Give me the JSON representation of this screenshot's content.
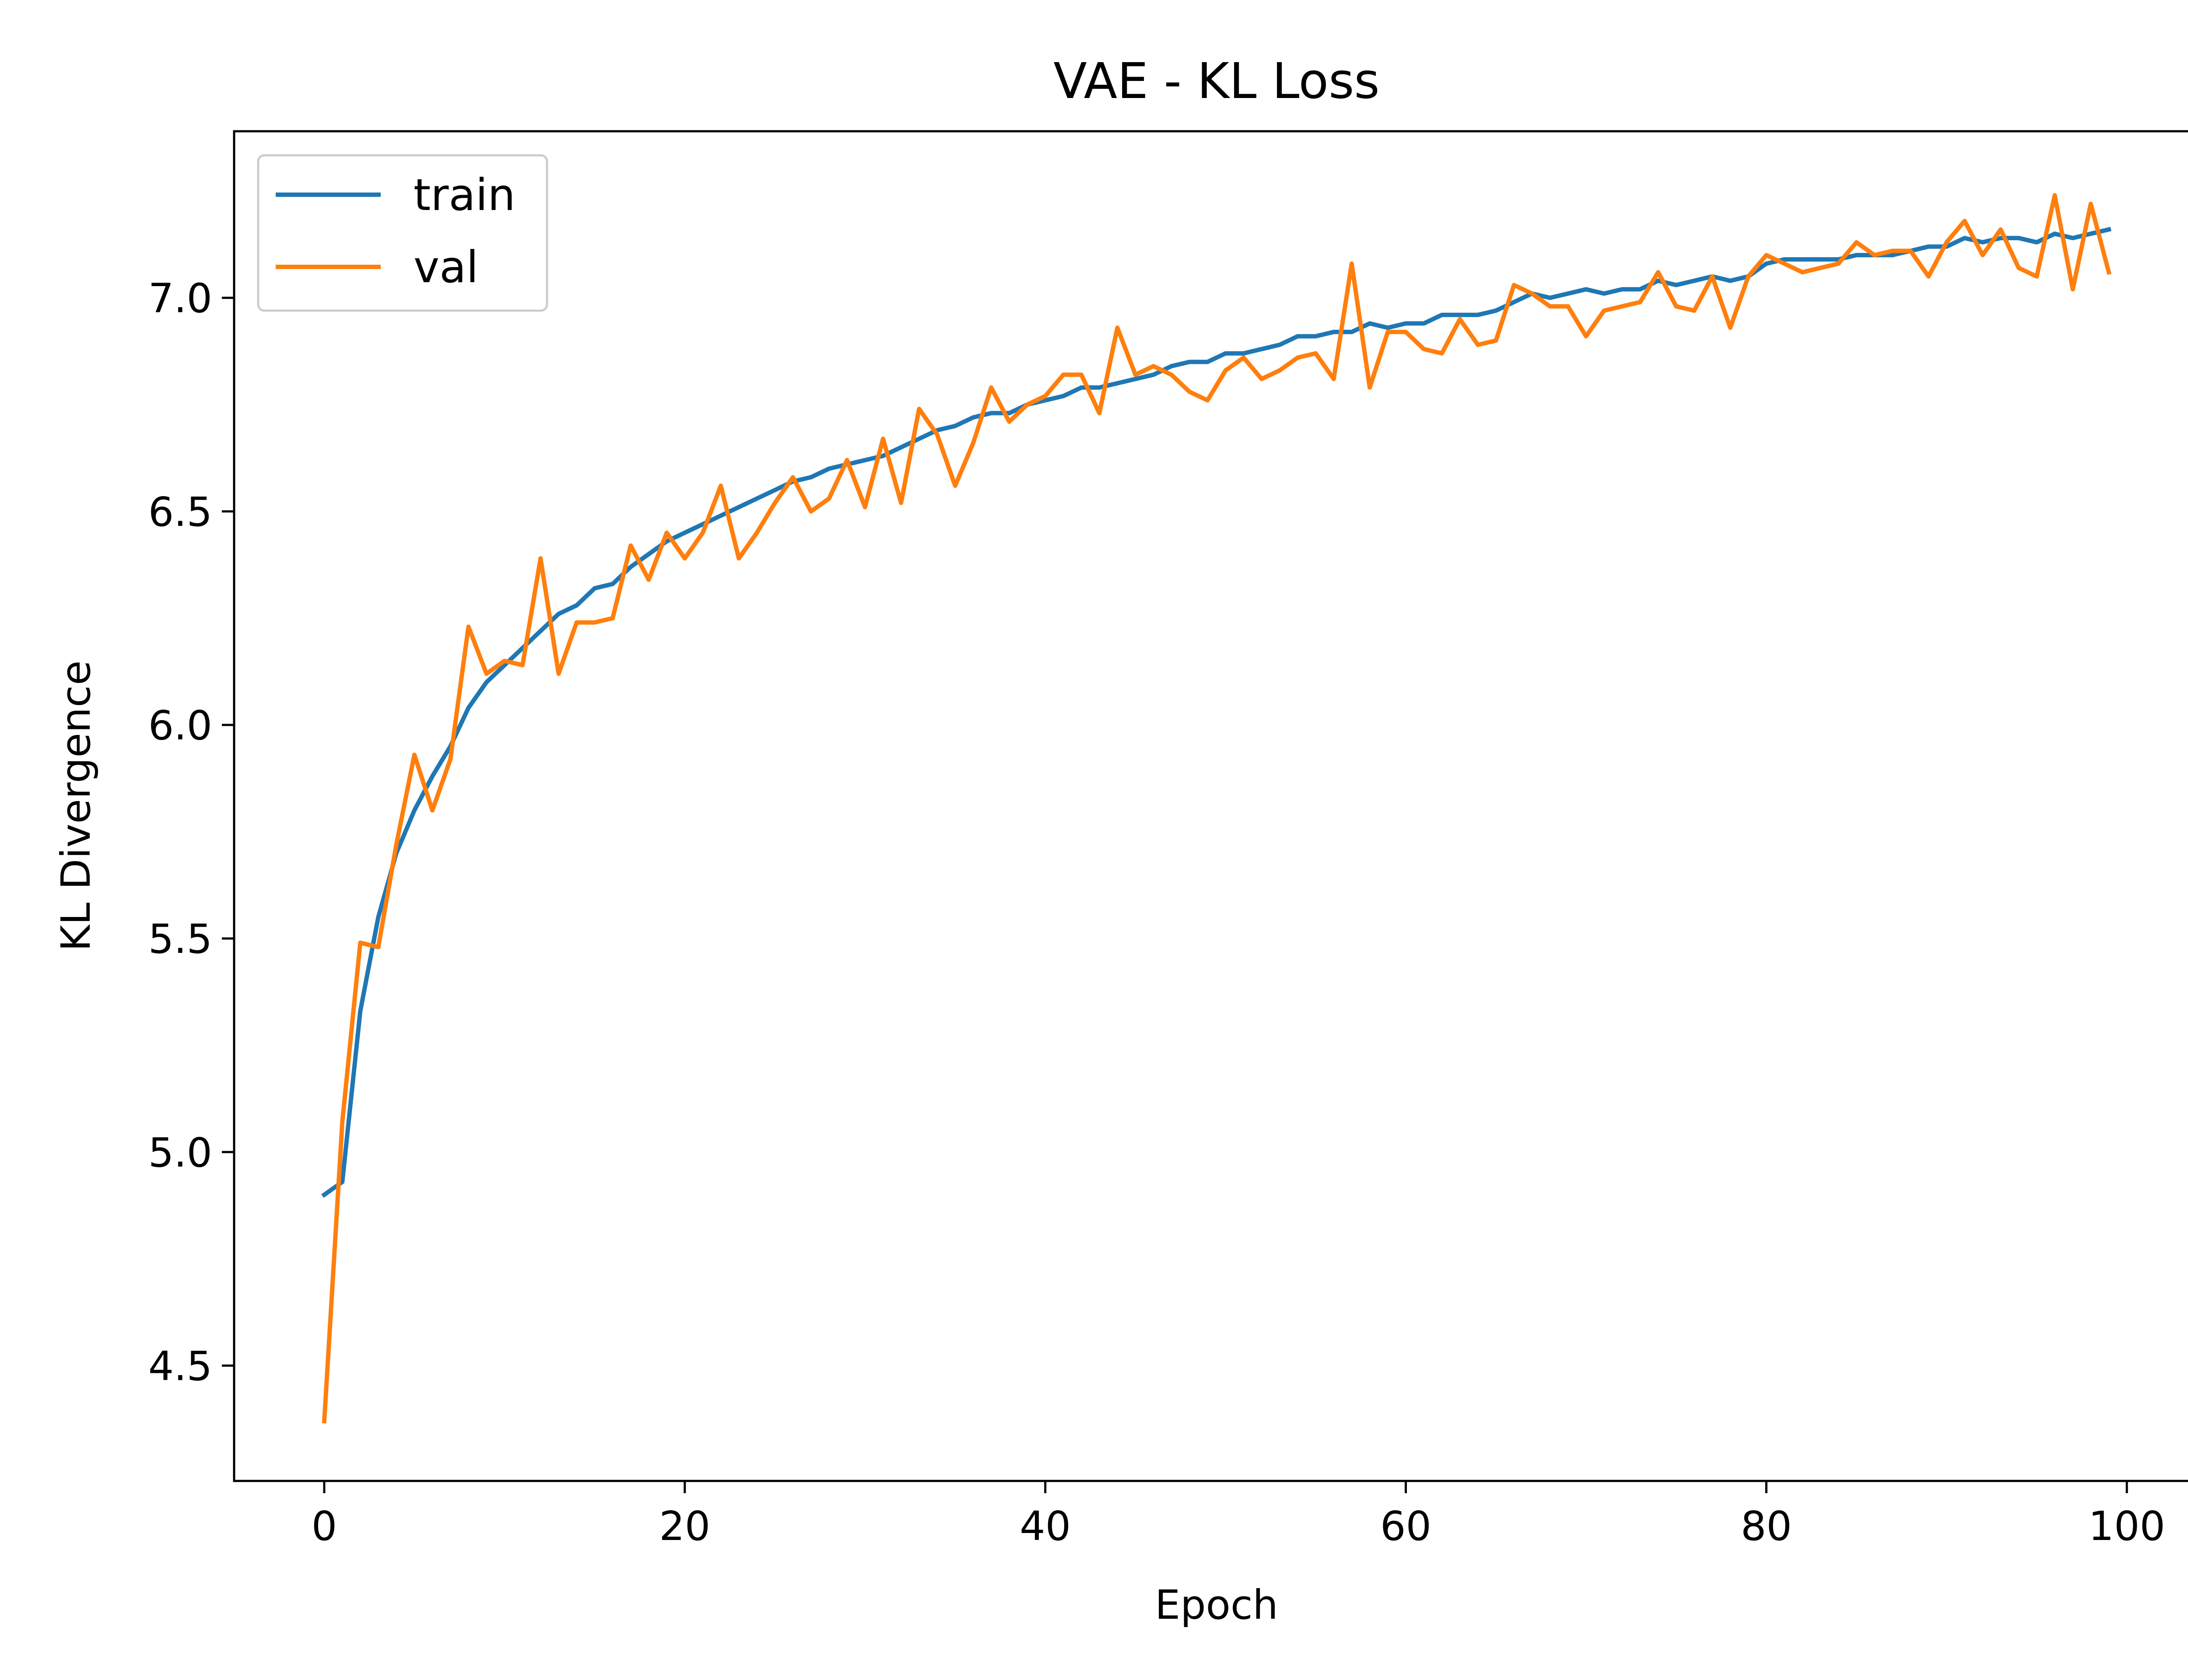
{
  "chart_data": {
    "type": "line",
    "title": "VAE - KL Loss",
    "xlabel": "Epoch",
    "ylabel": "KL Divergence",
    "xlim": [
      -5,
      104
    ],
    "ylim": [
      4.23,
      7.39
    ],
    "xticks": [
      0,
      20,
      40,
      60,
      80,
      100
    ],
    "yticks": [
      4.5,
      5.0,
      5.5,
      6.0,
      6.5,
      7.0
    ],
    "xtick_labels": [
      "0",
      "20",
      "40",
      "60",
      "80",
      "100"
    ],
    "ytick_labels": [
      "4.5",
      "5.0",
      "5.5",
      "6.0",
      "6.5",
      "7.0"
    ],
    "grid": false,
    "legend_position": "top-left",
    "series": [
      {
        "name": "train",
        "color": "#1f77b4",
        "x": [
          0,
          1,
          2,
          3,
          4,
          5,
          6,
          7,
          8,
          9,
          10,
          11,
          12,
          13,
          14,
          15,
          16,
          17,
          18,
          19,
          20,
          21,
          22,
          23,
          24,
          25,
          26,
          27,
          28,
          29,
          30,
          31,
          32,
          33,
          34,
          35,
          36,
          37,
          38,
          39,
          40,
          41,
          42,
          43,
          44,
          45,
          46,
          47,
          48,
          49,
          50,
          51,
          52,
          53,
          54,
          55,
          56,
          57,
          58,
          59,
          60,
          61,
          62,
          63,
          64,
          65,
          66,
          67,
          68,
          69,
          70,
          71,
          72,
          73,
          74,
          75,
          76,
          77,
          78,
          79,
          80,
          81,
          82,
          83,
          84,
          85,
          86,
          87,
          88,
          89,
          90,
          91,
          92,
          93,
          94,
          95,
          96,
          97,
          98,
          99
        ],
        "values": [
          4.9,
          4.93,
          5.33,
          5.55,
          5.7,
          5.8,
          5.88,
          5.95,
          6.04,
          6.1,
          6.14,
          6.18,
          6.22,
          6.26,
          6.28,
          6.32,
          6.33,
          6.37,
          6.4,
          6.43,
          6.45,
          6.47,
          6.49,
          6.51,
          6.53,
          6.55,
          6.57,
          6.58,
          6.6,
          6.61,
          6.62,
          6.63,
          6.65,
          6.67,
          6.69,
          6.7,
          6.72,
          6.73,
          6.73,
          6.75,
          6.76,
          6.77,
          6.79,
          6.79,
          6.8,
          6.81,
          6.82,
          6.84,
          6.85,
          6.85,
          6.87,
          6.87,
          6.88,
          6.89,
          6.91,
          6.91,
          6.92,
          6.92,
          6.94,
          6.93,
          6.94,
          6.94,
          6.96,
          6.96,
          6.96,
          6.97,
          6.99,
          7.01,
          7.0,
          7.01,
          7.02,
          7.01,
          7.02,
          7.02,
          7.04,
          7.03,
          7.04,
          7.05,
          7.04,
          7.05,
          7.08,
          7.09,
          7.09,
          7.09,
          7.09,
          7.1,
          7.1,
          7.1,
          7.11,
          7.12,
          7.12,
          7.14,
          7.13,
          7.14,
          7.14,
          7.13,
          7.15,
          7.14,
          7.15,
          7.16
        ]
      },
      {
        "name": "val",
        "color": "#ff7f0e",
        "x": [
          0,
          1,
          2,
          3,
          4,
          5,
          6,
          7,
          8,
          9,
          10,
          11,
          12,
          13,
          14,
          15,
          16,
          17,
          18,
          19,
          20,
          21,
          22,
          23,
          24,
          25,
          26,
          27,
          28,
          29,
          30,
          31,
          32,
          33,
          34,
          35,
          36,
          37,
          38,
          39,
          40,
          41,
          42,
          43,
          44,
          45,
          46,
          47,
          48,
          49,
          50,
          51,
          52,
          53,
          54,
          55,
          56,
          57,
          58,
          59,
          60,
          61,
          62,
          63,
          64,
          65,
          66,
          67,
          68,
          69,
          70,
          71,
          72,
          73,
          74,
          75,
          76,
          77,
          78,
          79,
          80,
          81,
          82,
          83,
          84,
          85,
          86,
          87,
          88,
          89,
          90,
          91,
          92,
          93,
          94,
          95,
          96,
          97,
          98,
          99
        ],
        "values": [
          4.37,
          5.07,
          5.49,
          5.48,
          5.72,
          5.93,
          5.8,
          5.92,
          6.23,
          6.12,
          6.15,
          6.14,
          6.39,
          6.12,
          6.24,
          6.24,
          6.25,
          6.42,
          6.34,
          6.45,
          6.39,
          6.45,
          6.56,
          6.39,
          6.45,
          6.52,
          6.58,
          6.5,
          6.53,
          6.62,
          6.51,
          6.67,
          6.52,
          6.74,
          6.68,
          6.56,
          6.66,
          6.79,
          6.71,
          6.75,
          6.77,
          6.82,
          6.82,
          6.73,
          6.93,
          6.82,
          6.84,
          6.82,
          6.78,
          6.76,
          6.83,
          6.86,
          6.81,
          6.83,
          6.86,
          6.87,
          6.81,
          7.08,
          6.79,
          6.92,
          6.92,
          6.88,
          6.87,
          6.95,
          6.89,
          6.9,
          7.03,
          7.01,
          6.98,
          6.98,
          6.91,
          6.97,
          6.98,
          6.99,
          7.06,
          6.98,
          6.97,
          7.05,
          6.93,
          7.05,
          7.1,
          7.08,
          7.06,
          7.07,
          7.08,
          7.13,
          7.1,
          7.11,
          7.11,
          7.05,
          7.13,
          7.18,
          7.1,
          7.16,
          7.07,
          7.05,
          7.24,
          7.02,
          7.22,
          7.06
        ]
      }
    ]
  }
}
